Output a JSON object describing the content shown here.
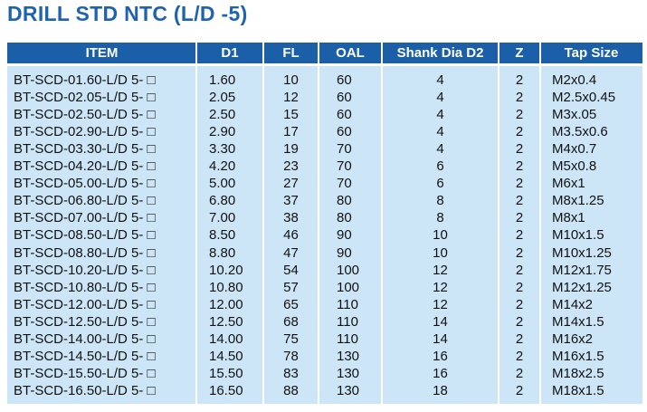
{
  "header": {
    "title": "DRILL STD NTC (L/D -5)"
  },
  "table": {
    "columns": [
      "ITEM",
      "D1",
      "FL",
      "OAL",
      "Shank Dia D2",
      "Z",
      "Tap Size"
    ],
    "rows": [
      [
        "BT-SCD-01.60-L/D 5- □",
        "1.60",
        "10",
        "60",
        "4",
        "2",
        "M2x0.4"
      ],
      [
        "BT-SCD-02.05-L/D 5- □",
        "2.05",
        "12",
        "60",
        "4",
        "2",
        "M2.5x0.45"
      ],
      [
        "BT-SCD-02.50-L/D 5- □",
        "2.50",
        "15",
        "60",
        "4",
        "2",
        "M3x.05"
      ],
      [
        "BT-SCD-02.90-L/D 5- □",
        "2.90",
        "17",
        "60",
        "4",
        "2",
        "M3.5x0.6"
      ],
      [
        "BT-SCD-03.30-L/D 5- □",
        "3.30",
        "19",
        "70",
        "4",
        "2",
        "M4x0.7"
      ],
      [
        "BT-SCD-04.20-L/D 5- □",
        "4.20",
        "23",
        "70",
        "6",
        "2",
        "M5x0.8"
      ],
      [
        "BT-SCD-05.00-L/D 5- □",
        "5.00",
        "27",
        "70",
        "6",
        "2",
        "M6x1"
      ],
      [
        "BT-SCD-06.80-L/D 5- □",
        "6.80",
        "37",
        "80",
        "8",
        "2",
        "M8x1.25"
      ],
      [
        "BT-SCD-07.00-L/D 5- □",
        "7.00",
        "38",
        "80",
        "8",
        "2",
        "M8x1"
      ],
      [
        "BT-SCD-08.50-L/D 5- □",
        "8.50",
        "46",
        "90",
        "10",
        "2",
        "M10x1.5"
      ],
      [
        "BT-SCD-08.80-L/D 5- □",
        "8.80",
        "47",
        "90",
        "10",
        "2",
        "M10x1.25"
      ],
      [
        "BT-SCD-10.20-L/D 5- □",
        "10.20",
        "54",
        "100",
        "12",
        "2",
        "M12x1.75"
      ],
      [
        "BT-SCD-10.80-L/D 5- □",
        "10.80",
        "57",
        "100",
        "12",
        "2",
        "M12x1.25"
      ],
      [
        "BT-SCD-12.00-L/D 5- □",
        "12.00",
        "65",
        "110",
        "12",
        "2",
        "M14x2"
      ],
      [
        "BT-SCD-12.50-L/D 5- □",
        "12.50",
        "68",
        "110",
        "14",
        "2",
        "M14x1.5"
      ],
      [
        "BT-SCD-14.00-L/D 5- □",
        "14.00",
        "75",
        "110",
        "14",
        "2",
        "M16x2"
      ],
      [
        "BT-SCD-14.50-L/D 5- □",
        "14.50",
        "78",
        "130",
        "16",
        "2",
        "M16x1.5"
      ],
      [
        "BT-SCD-15.50-L/D 5- □",
        "15.50",
        "83",
        "130",
        "16",
        "2",
        "M18x2.5"
      ],
      [
        "BT-SCD-16.50-L/D 5- □",
        "16.50",
        "88",
        "130",
        "18",
        "2",
        "M18x1.5"
      ]
    ]
  }
}
